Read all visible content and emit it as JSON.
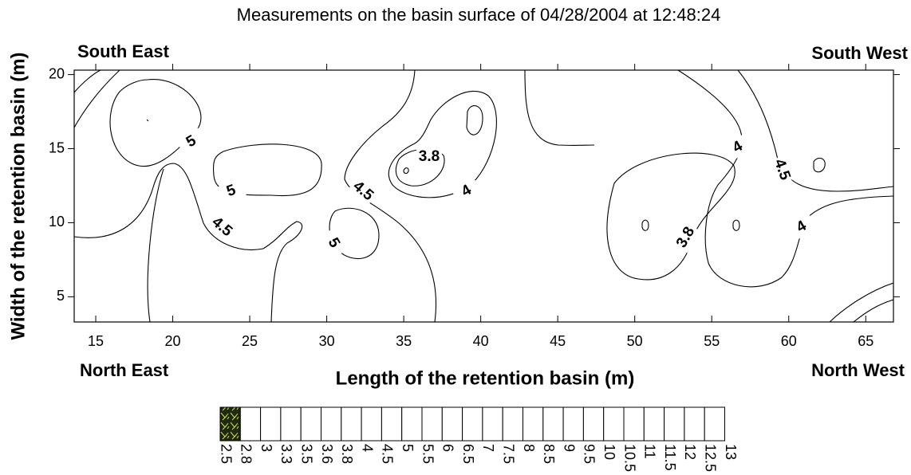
{
  "chart_data": {
    "type": "contour",
    "title": "Measurements on the basin surface of 04/28/2004 at 12:48:24",
    "x_label": "Length of the retention basin (m)",
    "y_label": "Width of the retention basin (m)",
    "corner_labels": {
      "top_left": "South East",
      "top_right": "South West",
      "bottom_left": "North East",
      "bottom_right": "North West"
    },
    "xlim": [
      13.6,
      66.8
    ],
    "xticks": [
      15,
      20,
      25,
      30,
      35,
      40,
      45,
      50,
      55,
      60,
      65
    ],
    "ylim": [
      3.3,
      20.3
    ],
    "yticks": [
      5,
      10,
      15,
      20
    ],
    "contour_labels": [
      5,
      5,
      4.5,
      5,
      4.5,
      3.8,
      4,
      4,
      4.5,
      3.8,
      4
    ],
    "legend": {
      "levels": [
        2.5,
        2.8,
        3,
        3.3,
        3.5,
        3.6,
        3.8,
        4,
        4.5,
        5,
        5.5,
        6,
        6.5,
        7,
        7.5,
        8,
        8.5,
        9,
        9.5,
        10,
        10.5,
        11,
        11.5,
        12,
        12.5,
        13
      ],
      "colors": [
        "#1e2a10",
        "#ffffff",
        "#ffffff",
        "#ffffff",
        "#ffffff",
        "#ffffff",
        "#ffffff",
        "#ffffff",
        "#ffffff",
        "#ffffff",
        "#ffffff",
        "#ffffff",
        "#ffffff",
        "#ffffff",
        "#ffffff",
        "#ffffff",
        "#ffffff",
        "#ffffff",
        "#ffffff",
        "#ffffff",
        "#ffffff",
        "#ffffff",
        "#ffffff",
        "#ffffff",
        "#ffffff"
      ]
    }
  }
}
